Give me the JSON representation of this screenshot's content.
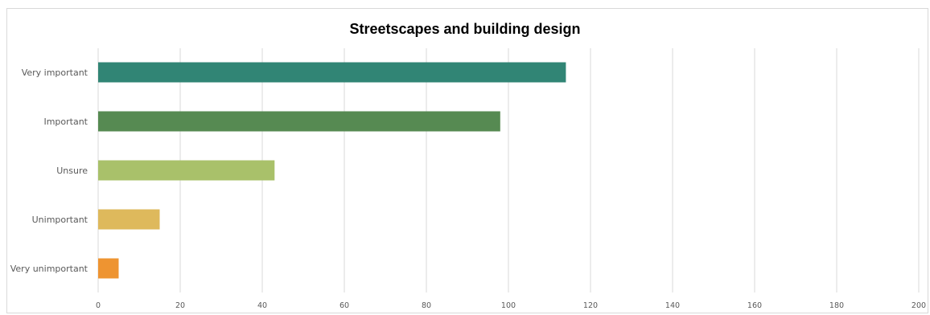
{
  "chart_data": {
    "type": "bar",
    "orientation": "horizontal",
    "title": "Streetscapes and building design",
    "categories": [
      "Very important",
      "Important",
      "Unsure",
      "Unimportant",
      "Very unimportant"
    ],
    "values": [
      114,
      98,
      43,
      15,
      5
    ],
    "colors": [
      "#318575",
      "#568a52",
      "#a9c16a",
      "#deb95c",
      "#ee9431"
    ],
    "xlim": [
      0,
      200
    ],
    "xticks": [
      0,
      20,
      40,
      60,
      80,
      100,
      120,
      140,
      160,
      180,
      200
    ],
    "grid": true,
    "legend": "none"
  }
}
